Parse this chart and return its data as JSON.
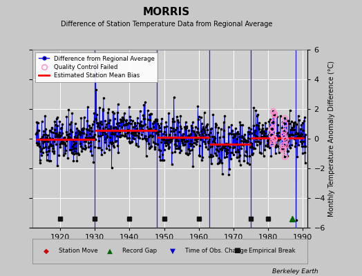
{
  "title": "MORRIS",
  "subtitle": "Difference of Station Temperature Data from Regional Average",
  "ylabel_right": "Monthly Temperature Anomaly Difference (°C)",
  "xlim": [
    1912.0,
    1991.5
  ],
  "ylim": [
    -6,
    6
  ],
  "yticks": [
    -6,
    -4,
    -2,
    0,
    2,
    4,
    6
  ],
  "xticks": [
    1920,
    1930,
    1940,
    1950,
    1960,
    1970,
    1980,
    1990
  ],
  "bg_color": "#c8c8c8",
  "plot_bg_color": "#d0d0d0",
  "grid_color": "#ffffff",
  "line_color": "#0000ff",
  "dot_color": "#000000",
  "bias_color": "#ff0000",
  "qc_color": "#ff88cc",
  "seed": 42,
  "start_year": 1913,
  "end_year": 1990,
  "bias_segments": [
    {
      "start": 1913.0,
      "end": 1930.0,
      "value": -0.05
    },
    {
      "start": 1930.0,
      "end": 1948.0,
      "value": 0.55
    },
    {
      "start": 1948.0,
      "end": 1963.0,
      "value": 0.1
    },
    {
      "start": 1963.0,
      "end": 1975.0,
      "value": -0.35
    },
    {
      "start": 1975.0,
      "end": 1990.5,
      "value": 0.05
    }
  ],
  "vertical_lines": [
    1930.0,
    1948.0,
    1963.0,
    1975.0,
    1988.0
  ],
  "empirical_break_years": [
    1920,
    1930,
    1940,
    1950,
    1960,
    1975,
    1980
  ],
  "record_gap_years": [
    1987
  ],
  "footer_text": "Berkeley Earth"
}
